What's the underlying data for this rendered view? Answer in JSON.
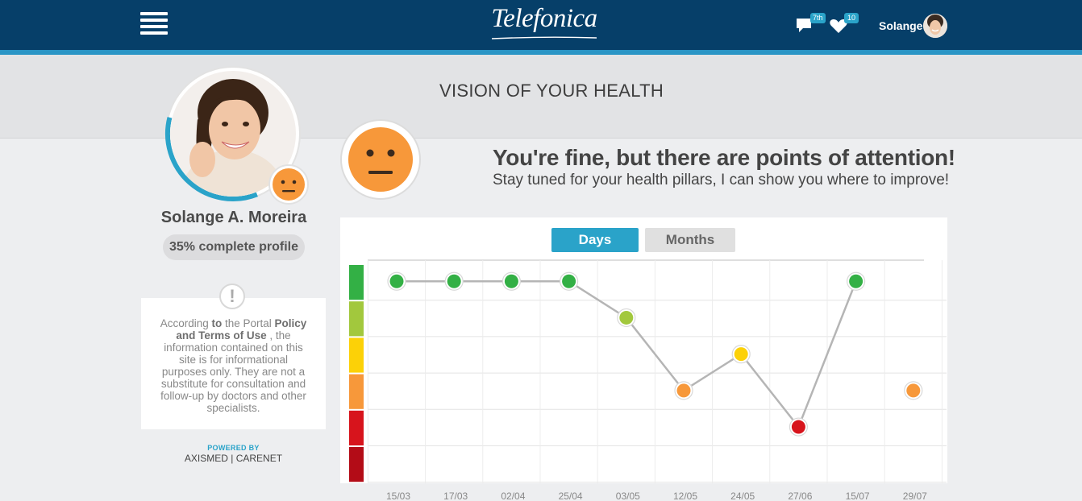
{
  "header": {
    "logo_text": "Telefonica",
    "messages_badge": "7th",
    "favorites_badge": "10",
    "user_name": "Solange"
  },
  "banner": {
    "title": "VISION OF YOUR HEALTH"
  },
  "profile": {
    "name": "Solange A. Moreira",
    "completion_label": "35% complete profile",
    "completion_percent": 35
  },
  "disclaimer": {
    "text_1": "According ",
    "bold_1": "to",
    "text_2": " the Portal ",
    "bold_2": "Policy and Terms of Use",
    "text_3": " , the information contained on this site is for informational purposes only. They are not a substitute for consultation and follow-up by doctors and other specialists."
  },
  "footer": {
    "powered_by": "POWERED BY",
    "brand": "AXISMED | CARENET"
  },
  "status": {
    "headline": "You're fine, but there are points of attention!",
    "subline": "Stay tuned for your health pillars, I can show you where to improve!",
    "mood": "neutral",
    "mood_color": "#f7983a"
  },
  "tabs": {
    "days": "Days",
    "months": "Months",
    "active": "Days"
  },
  "chart_data": {
    "type": "line",
    "categories": [
      "15/03",
      "17/03",
      "02/04",
      "25/04",
      "03/05",
      "12/05",
      "24/05",
      "27/06",
      "15/07",
      "29/07"
    ],
    "values": [
      6,
      6,
      6,
      6,
      5,
      3,
      4,
      2,
      6,
      3
    ],
    "connected_points": 9,
    "ylim": [
      1,
      6
    ],
    "level_colors": [
      "#b30c17",
      "#d7141c",
      "#f7983a",
      "#fcd107",
      "#a2c83d",
      "#33b045"
    ],
    "line_color": "#b5b5b5",
    "grid": true
  }
}
